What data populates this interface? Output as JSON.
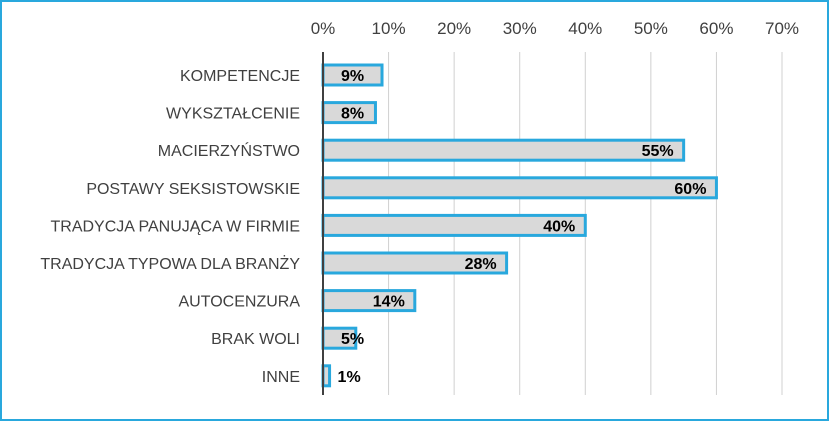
{
  "chart_data": {
    "type": "bar",
    "orientation": "horizontal",
    "categories": [
      "KOMPETENCJE",
      "WYKSZTAŁCENIE",
      "MACIERZYŃSTWO",
      "POSTAWY SEKSISTOWSKIE",
      "TRADYCJA PANUJĄCA W FIRMIE",
      "TRADYCJA TYPOWA DLA BRANŻY",
      "AUTOCENZURA",
      "BRAK WOLI",
      "INNE"
    ],
    "values": [
      9,
      8,
      55,
      60,
      40,
      28,
      14,
      5,
      1
    ],
    "data_labels": [
      "9%",
      "8%",
      "55%",
      "60%",
      "40%",
      "28%",
      "14%",
      "5%",
      "1%"
    ],
    "x_ticks": [
      "0%",
      "10%",
      "20%",
      "30%",
      "40%",
      "50%",
      "60%",
      "70%"
    ],
    "xlim": [
      0,
      70
    ],
    "x_axis_position": "top",
    "grid": true,
    "legend": "none",
    "title": "",
    "xlabel": "",
    "ylabel": ""
  },
  "colors": {
    "bar_fill": "#d9d9d9",
    "bar_stroke": "#29a8dd",
    "frame": "#29a8dd",
    "gridline": "#d0d0d0",
    "axis": "#404040",
    "text": "#404040"
  }
}
